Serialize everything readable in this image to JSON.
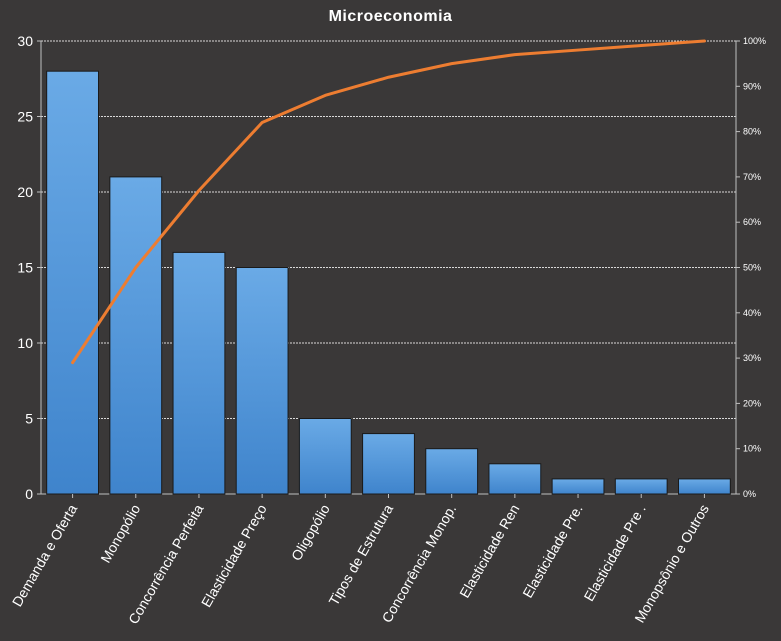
{
  "chart_data": {
    "type": "bar",
    "title": "Microeconomia",
    "categories": [
      "Demanda e Oferta",
      "Monopólio",
      "Concorrência Perfeita",
      "Elasticidade Preço",
      "Oligopólio",
      "Tipos de Estrutura",
      "Concorrência Monop.",
      "Elasticidade Ren",
      "Elasticidade Pre.",
      "Elasticidade Pre .",
      "Monopsônio e Outros"
    ],
    "series": [
      {
        "type": "bar",
        "values": [
          28,
          21,
          16,
          15,
          5,
          4,
          3,
          2,
          1,
          1,
          1
        ],
        "axis": "left",
        "color": "#5a9ee0"
      },
      {
        "type": "line",
        "values": [
          29,
          50,
          67,
          82,
          88,
          92,
          95,
          97,
          98,
          99,
          100
        ],
        "axis": "right",
        "unit": "%",
        "color": "#ed7d31"
      }
    ],
    "y_left": {
      "ylim": [
        0,
        30
      ],
      "ticks": [
        0,
        5,
        10,
        15,
        20,
        25,
        30
      ]
    },
    "y_right": {
      "ylim": [
        0,
        100
      ],
      "ticks": [
        "0%",
        "10%",
        "20%",
        "30%",
        "40%",
        "50%",
        "60%",
        "70%",
        "80%",
        "90%",
        "100%"
      ]
    },
    "grid": true,
    "legend": "none",
    "xlabel": "",
    "ylabel": ""
  }
}
